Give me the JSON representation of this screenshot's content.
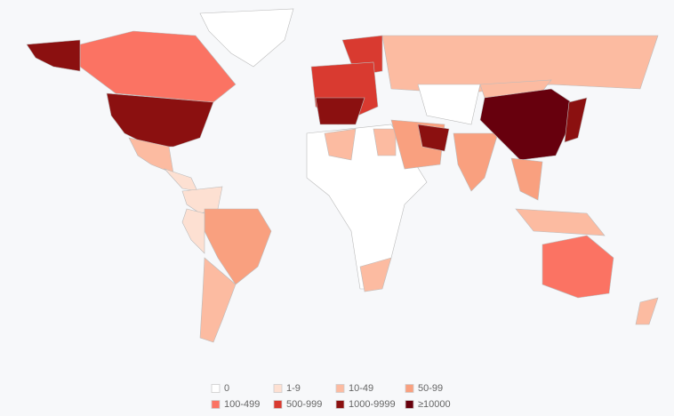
{
  "legend": {
    "items": [
      {
        "label": "0",
        "color": "#ffffff"
      },
      {
        "label": "1-9",
        "color": "#fde0d2"
      },
      {
        "label": "10-49",
        "color": "#fcbba1"
      },
      {
        "label": "50-99",
        "color": "#f9a07f"
      },
      {
        "label": "100-499",
        "color": "#fb7363"
      },
      {
        "label": "500-999",
        "color": "#d93a30"
      },
      {
        "label": "1000-9999",
        "color": "#8b1010"
      },
      {
        "label": "≥10000",
        "color": "#67000d"
      }
    ]
  }
}
